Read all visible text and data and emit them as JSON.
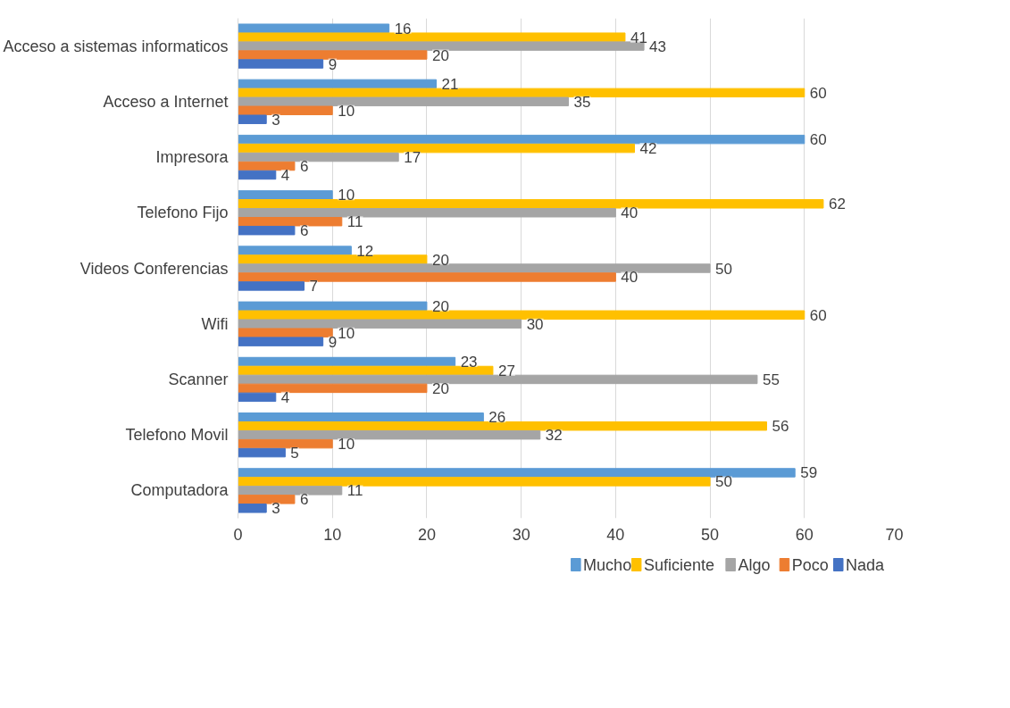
{
  "chart_data": {
    "type": "bar",
    "orientation": "horizontal",
    "categories": [
      "Acceso a sistemas informaticos",
      "Acceso a Internet",
      "Impresora",
      "Telefono Fijo",
      "Videos Conferencias",
      "Wifi",
      "Scanner",
      "Telefono Movil",
      "Computadora"
    ],
    "series": [
      {
        "name": "Mucho",
        "color": "#5b9bd5",
        "values": [
          16,
          21,
          60,
          10,
          12,
          20,
          23,
          26,
          59
        ]
      },
      {
        "name": "Suficiente",
        "color": "#ffc000",
        "values": [
          41,
          60,
          42,
          62,
          20,
          60,
          27,
          56,
          50
        ]
      },
      {
        "name": "Algo",
        "color": "#a5a5a5",
        "values": [
          43,
          35,
          17,
          40,
          50,
          30,
          55,
          32,
          11
        ]
      },
      {
        "name": "Poco",
        "color": "#ed7d31",
        "values": [
          20,
          10,
          6,
          11,
          40,
          10,
          20,
          10,
          6
        ]
      },
      {
        "name": "Nada",
        "color": "#4472c4",
        "values": [
          9,
          3,
          4,
          6,
          7,
          9,
          4,
          5,
          3
        ]
      }
    ],
    "xlim": [
      0,
      70
    ],
    "xticks": [
      0,
      10,
      20,
      30,
      40,
      50,
      60,
      70
    ],
    "grid": "x",
    "legend": "bottom",
    "data_labels": true
  }
}
